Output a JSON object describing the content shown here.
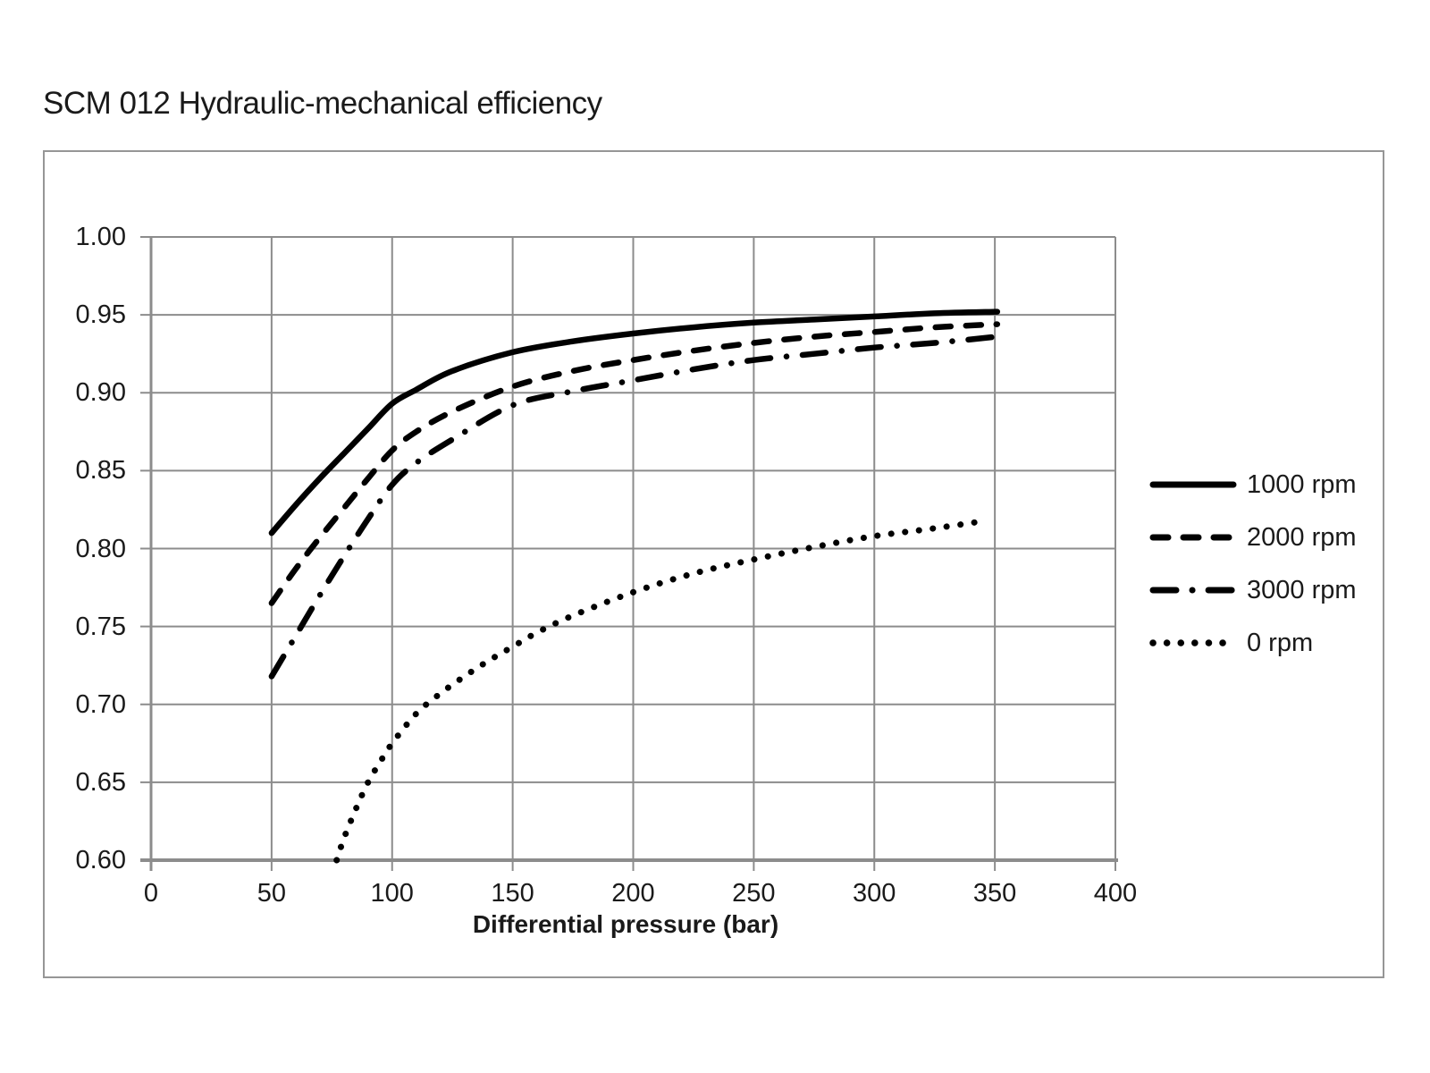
{
  "title": "SCM 012 Hydraulic-mechanical efficiency",
  "chart_data": {
    "type": "line",
    "title": "SCM 012 Hydraulic-mechanical efficiency",
    "xlabel": "Differential pressure (bar)",
    "ylabel": "",
    "xlim": [
      0,
      400
    ],
    "ylim": [
      0.6,
      1.0
    ],
    "x_ticks": [
      0,
      50,
      100,
      150,
      200,
      250,
      300,
      350,
      400
    ],
    "y_ticks": [
      1.0,
      0.95,
      0.9,
      0.85,
      0.8,
      0.75,
      0.7,
      0.65,
      0.6
    ],
    "y_tick_labels": [
      "1.00",
      "0.95",
      "0.90",
      "0.85",
      "0.80",
      "0.75",
      "0.70",
      "0.65",
      "0.60"
    ],
    "grid": true,
    "legend_position": "right",
    "line_color": "#000000",
    "grid_color": "#8c8c8c",
    "series": [
      {
        "name": "1000 rpm",
        "style": "solid",
        "points": [
          [
            50,
            0.81
          ],
          [
            60,
            0.828
          ],
          [
            70,
            0.845
          ],
          [
            80,
            0.861
          ],
          [
            90,
            0.877
          ],
          [
            100,
            0.893
          ],
          [
            110,
            0.902
          ],
          [
            125,
            0.914
          ],
          [
            150,
            0.926
          ],
          [
            175,
            0.933
          ],
          [
            200,
            0.938
          ],
          [
            225,
            0.942
          ],
          [
            250,
            0.945
          ],
          [
            275,
            0.947
          ],
          [
            300,
            0.949
          ],
          [
            325,
            0.951
          ],
          [
            351,
            0.952
          ]
        ]
      },
      {
        "name": "2000 rpm",
        "style": "dashed",
        "points": [
          [
            50,
            0.765
          ],
          [
            60,
            0.787
          ],
          [
            70,
            0.807
          ],
          [
            80,
            0.826
          ],
          [
            90,
            0.845
          ],
          [
            100,
            0.863
          ],
          [
            110,
            0.875
          ],
          [
            125,
            0.888
          ],
          [
            150,
            0.904
          ],
          [
            175,
            0.914
          ],
          [
            200,
            0.921
          ],
          [
            225,
            0.927
          ],
          [
            250,
            0.932
          ],
          [
            275,
            0.936
          ],
          [
            300,
            0.939
          ],
          [
            325,
            0.942
          ],
          [
            351,
            0.944
          ]
        ]
      },
      {
        "name": "3000 rpm",
        "style": "dashdot",
        "points": [
          [
            50,
            0.718
          ],
          [
            60,
            0.744
          ],
          [
            70,
            0.77
          ],
          [
            80,
            0.795
          ],
          [
            90,
            0.819
          ],
          [
            100,
            0.841
          ],
          [
            110,
            0.855
          ],
          [
            125,
            0.87
          ],
          [
            150,
            0.892
          ],
          [
            175,
            0.901
          ],
          [
            200,
            0.908
          ],
          [
            225,
            0.915
          ],
          [
            250,
            0.921
          ],
          [
            275,
            0.925
          ],
          [
            300,
            0.929
          ],
          [
            325,
            0.932
          ],
          [
            351,
            0.936
          ]
        ]
      },
      {
        "name": "0 rpm",
        "style": "dotted",
        "points": [
          [
            77,
            0.6
          ],
          [
            80,
            0.614
          ],
          [
            85,
            0.633
          ],
          [
            90,
            0.65
          ],
          [
            95,
            0.663
          ],
          [
            100,
            0.675
          ],
          [
            110,
            0.694
          ],
          [
            120,
            0.707
          ],
          [
            130,
            0.718
          ],
          [
            140,
            0.728
          ],
          [
            150,
            0.737
          ],
          [
            160,
            0.746
          ],
          [
            175,
            0.757
          ],
          [
            200,
            0.772
          ],
          [
            225,
            0.784
          ],
          [
            250,
            0.793
          ],
          [
            275,
            0.801
          ],
          [
            300,
            0.808
          ],
          [
            325,
            0.813
          ],
          [
            347,
            0.818
          ]
        ]
      }
    ]
  }
}
